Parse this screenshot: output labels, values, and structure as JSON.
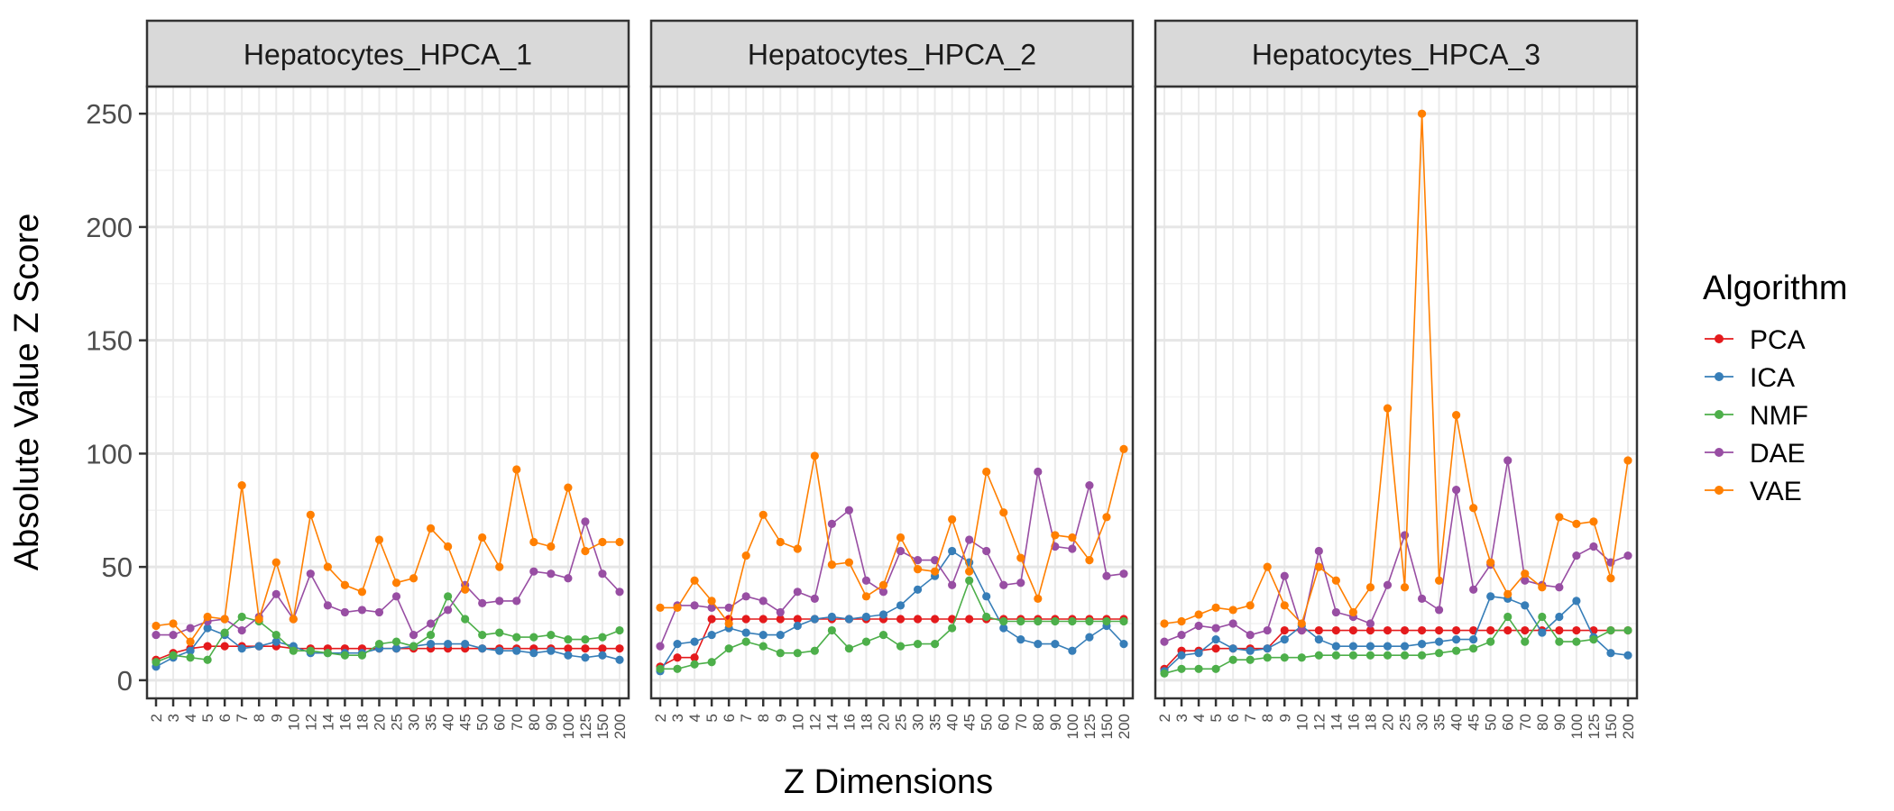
{
  "chart_data": {
    "type": "line",
    "ylabel": "Absolute Value Z Score",
    "xlabel": "Z Dimensions",
    "ylim": [
      -8,
      262
    ],
    "yticks": [
      0,
      50,
      100,
      150,
      200,
      250
    ],
    "grid": true,
    "legend_position": "right",
    "legend": {
      "title": "Algorithm",
      "entries": [
        {
          "name": "PCA",
          "color": "#e41a1c"
        },
        {
          "name": "ICA",
          "color": "#377eb8"
        },
        {
          "name": "NMF",
          "color": "#4daf4a"
        },
        {
          "name": "DAE",
          "color": "#984ea3"
        },
        {
          "name": "VAE",
          "color": "#ff7f00"
        }
      ]
    },
    "categories": [
      "2",
      "3",
      "4",
      "5",
      "6",
      "7",
      "8",
      "9",
      "10",
      "12",
      "14",
      "16",
      "18",
      "20",
      "25",
      "30",
      "35",
      "40",
      "45",
      "50",
      "60",
      "70",
      "80",
      "90",
      "100",
      "125",
      "150",
      "200"
    ],
    "panels": [
      {
        "title": "Hepatocytes_HPCA_1",
        "series": [
          {
            "name": "PCA",
            "values": [
              9,
              12,
              14,
              15,
              15,
              15,
              15,
              15,
              14,
              14,
              14,
              14,
              14,
              14,
              14,
              14,
              14,
              14,
              14,
              14,
              14,
              14,
              14,
              14,
              14,
              14,
              14,
              14
            ]
          },
          {
            "name": "ICA",
            "values": [
              6,
              10,
              13,
              23,
              20,
              14,
              15,
              17,
              15,
              12,
              12,
              12,
              12,
              14,
              14,
              15,
              16,
              16,
              16,
              14,
              13,
              13,
              12,
              13,
              11,
              10,
              11,
              9
            ]
          },
          {
            "name": "NMF",
            "values": [
              8,
              11,
              10,
              9,
              21,
              28,
              26,
              20,
              13,
              13,
              12,
              11,
              11,
              16,
              17,
              15,
              20,
              37,
              27,
              20,
              21,
              19,
              19,
              20,
              18,
              18,
              19,
              22
            ]
          },
          {
            "name": "DAE",
            "values": [
              20,
              20,
              23,
              26,
              27,
              22,
              28,
              38,
              27,
              47,
              33,
              30,
              31,
              30,
              37,
              20,
              25,
              31,
              42,
              34,
              35,
              35,
              48,
              47,
              45,
              70,
              47,
              39
            ]
          },
          {
            "name": "VAE",
            "values": [
              24,
              25,
              17,
              28,
              27,
              86,
              27,
              52,
              27,
              73,
              50,
              42,
              39,
              62,
              43,
              45,
              67,
              59,
              40,
              63,
              50,
              93,
              61,
              59,
              85,
              57,
              61,
              61
            ]
          }
        ]
      },
      {
        "title": "Hepatocytes_HPCA_2",
        "series": [
          {
            "name": "PCA",
            "values": [
              6,
              10,
              10,
              27,
              27,
              27,
              27,
              27,
              27,
              27,
              27,
              27,
              27,
              27,
              27,
              27,
              27,
              27,
              27,
              27,
              27,
              27,
              27,
              27,
              27,
              27,
              27,
              27
            ]
          },
          {
            "name": "ICA",
            "values": [
              4,
              16,
              17,
              20,
              23,
              21,
              20,
              20,
              24,
              27,
              28,
              27,
              28,
              29,
              33,
              40,
              46,
              57,
              52,
              37,
              23,
              18,
              16,
              16,
              13,
              19,
              24,
              16
            ]
          },
          {
            "name": "NMF",
            "values": [
              5,
              5,
              7,
              8,
              14,
              17,
              15,
              12,
              12,
              13,
              22,
              14,
              17,
              20,
              15,
              16,
              16,
              23,
              44,
              28,
              26,
              26,
              26,
              26,
              26,
              26,
              26,
              26
            ]
          },
          {
            "name": "DAE",
            "values": [
              15,
              33,
              33,
              32,
              32,
              37,
              35,
              30,
              39,
              36,
              69,
              75,
              44,
              39,
              57,
              53,
              53,
              42,
              62,
              57,
              42,
              43,
              92,
              59,
              58,
              86,
              46,
              47
            ]
          },
          {
            "name": "VAE",
            "values": [
              32,
              32,
              44,
              35,
              25,
              55,
              73,
              61,
              58,
              99,
              51,
              52,
              37,
              42,
              63,
              49,
              48,
              71,
              48,
              92,
              74,
              54,
              36,
              64,
              63,
              53,
              72,
              102
            ]
          }
        ]
      },
      {
        "title": "Hepatocytes_HPCA_3",
        "series": [
          {
            "name": "PCA",
            "values": [
              5,
              13,
              13,
              14,
              14,
              14,
              14,
              22,
              22,
              22,
              22,
              22,
              22,
              22,
              22,
              22,
              22,
              22,
              22,
              22,
              22,
              22,
              22,
              22,
              22,
              22,
              22,
              22
            ]
          },
          {
            "name": "ICA",
            "values": [
              4,
              11,
              12,
              18,
              14,
              13,
              14,
              18,
              24,
              18,
              15,
              15,
              15,
              15,
              15,
              16,
              17,
              18,
              18,
              37,
              36,
              33,
              21,
              28,
              35,
              19,
              12,
              11
            ]
          },
          {
            "name": "NMF",
            "values": [
              3,
              5,
              5,
              5,
              9,
              9,
              10,
              10,
              10,
              11,
              11,
              11,
              11,
              11,
              11,
              11,
              12,
              13,
              14,
              17,
              28,
              17,
              28,
              17,
              17,
              18,
              22,
              22
            ]
          },
          {
            "name": "DAE",
            "values": [
              17,
              20,
              24,
              23,
              25,
              20,
              22,
              46,
              22,
              57,
              30,
              28,
              25,
              42,
              64,
              36,
              31,
              84,
              40,
              51,
              97,
              44,
              42,
              41,
              55,
              59,
              52,
              55
            ]
          },
          {
            "name": "VAE",
            "values": [
              25,
              26,
              29,
              32,
              31,
              33,
              50,
              33,
              25,
              50,
              44,
              30,
              41,
              120,
              41,
              250,
              44,
              117,
              76,
              52,
              38,
              47,
              41,
              72,
              69,
              70,
              45,
              97
            ]
          }
        ]
      }
    ]
  }
}
